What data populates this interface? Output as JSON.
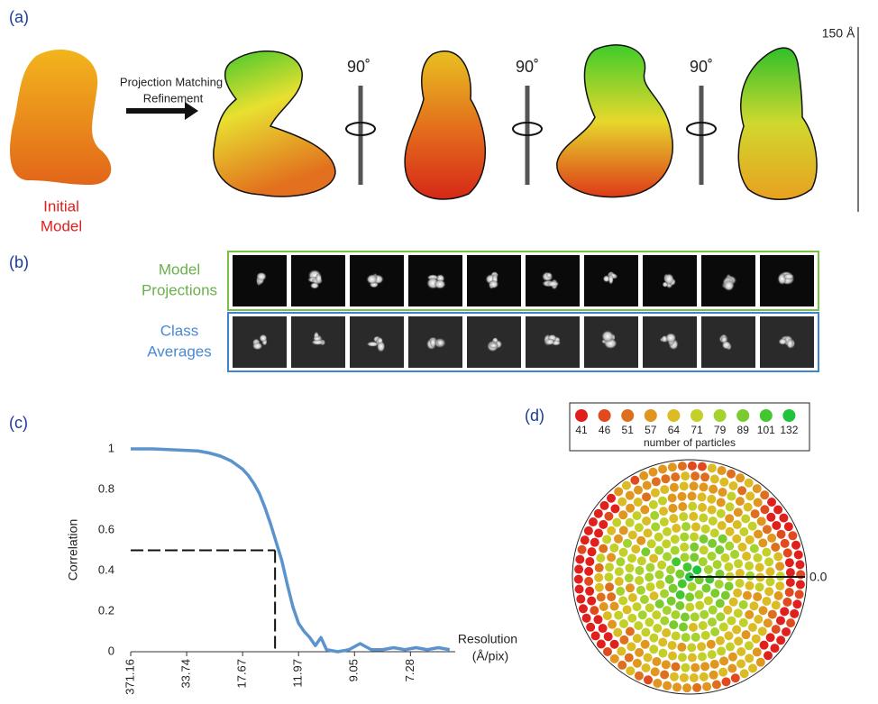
{
  "panel_a": {
    "label": "(a)",
    "initial_model": [
      "Initial",
      "Model"
    ],
    "arrow_label": [
      "Projection Matching",
      "Refinement"
    ],
    "rotations": [
      "90˚",
      "90˚",
      "90˚"
    ],
    "scale_bar": "150 Å"
  },
  "panel_b": {
    "label": "(b)",
    "rows": [
      {
        "label": [
          "Model",
          "Projections"
        ],
        "color": "#6ab04c",
        "frame": "#7ac143"
      },
      {
        "label": [
          "Class",
          "Averages"
        ],
        "color": "#4a8ad4",
        "frame": "#3d85d1"
      }
    ]
  },
  "chart_data": {
    "type": "line",
    "label": "(c)",
    "y_label": "Correlation",
    "x_label": [
      "Resolution",
      "(Å/pix)"
    ],
    "color": "#5b93cc",
    "x": [
      1,
      5,
      9,
      13,
      15,
      17,
      19,
      21,
      22,
      23,
      24,
      25,
      26,
      27,
      28,
      29,
      30,
      31,
      32,
      33,
      34,
      35,
      36,
      38,
      40,
      42,
      44,
      46,
      48,
      50,
      52,
      54,
      56,
      58
    ],
    "values": [
      1,
      1,
      0.995,
      0.99,
      0.98,
      0.965,
      0.94,
      0.9,
      0.87,
      0.83,
      0.78,
      0.71,
      0.63,
      0.54,
      0.45,
      0.33,
      0.22,
      0.14,
      0.1,
      0.07,
      0.03,
      0.07,
      0.01,
      0,
      0.01,
      0.04,
      0.01,
      0.01,
      0.02,
      0.01,
      0.02,
      0.01,
      0.02,
      0.01
    ],
    "xlim": [
      1,
      59
    ],
    "ylim": [
      0,
      1
    ],
    "xticks": [
      {
        "value": 1,
        "label": "371.16"
      },
      {
        "value": 11,
        "label": "33.74"
      },
      {
        "value": 21,
        "label": "17.67"
      },
      {
        "value": 31,
        "label": "11.97"
      },
      {
        "value": 41,
        "label": "9.05"
      },
      {
        "value": 51,
        "label": "7.28"
      }
    ],
    "yticks": [
      0,
      0.2,
      0.4,
      0.6,
      0.8,
      1
    ],
    "threshold": {
      "x": 26.8,
      "y": 0.5
    }
  },
  "panel_d": {
    "label": "(d)",
    "legend_title": "number of particles",
    "legend": [
      {
        "value": 41,
        "color": "#e0201c"
      },
      {
        "value": 46,
        "color": "#e04a1e"
      },
      {
        "value": 51,
        "color": "#de6f1f"
      },
      {
        "value": 57,
        "color": "#e0961f"
      },
      {
        "value": 64,
        "color": "#dcbc25"
      },
      {
        "value": 71,
        "color": "#c4d02a"
      },
      {
        "value": 79,
        "color": "#a4d22e"
      },
      {
        "value": 89,
        "color": "#7acb30"
      },
      {
        "value": 101,
        "color": "#44c631"
      },
      {
        "value": 132,
        "color": "#1fc43a"
      }
    ],
    "zero_label": "0.0"
  }
}
